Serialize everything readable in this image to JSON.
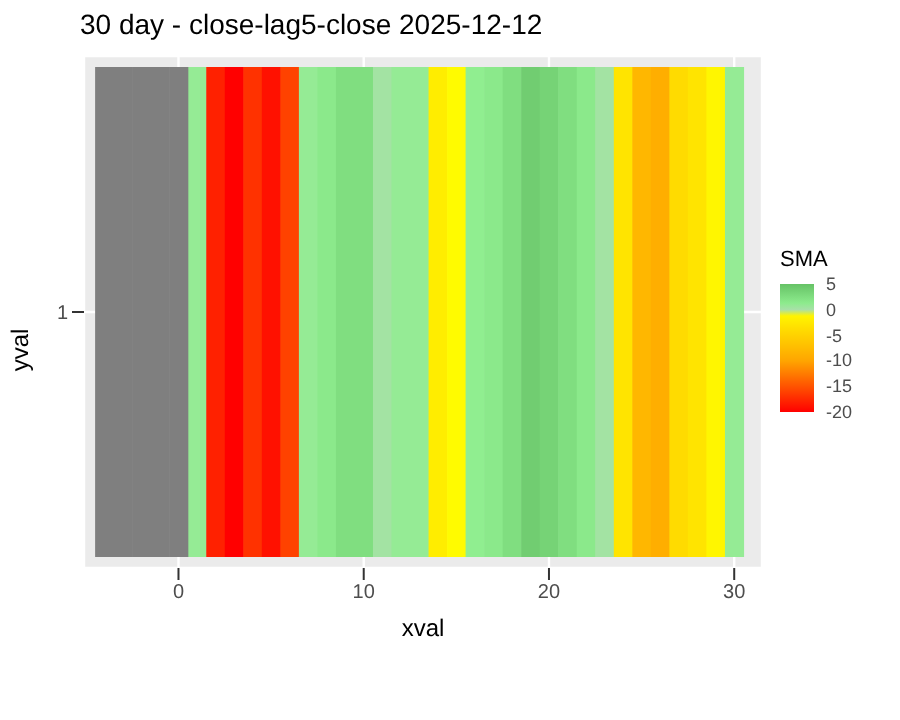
{
  "chart_data": {
    "type": "heatmap",
    "title": "30 day - close-lag5-close  2025-12-12",
    "xlabel": "xval",
    "ylabel": "yval",
    "clabel": "SMA",
    "categories": [
      null,
      null,
      null,
      null,
      "0",
      null,
      null,
      null,
      null,
      null,
      null,
      null,
      null,
      null,
      "10",
      null,
      null,
      null,
      null,
      null,
      null,
      null,
      null,
      null,
      "20",
      null,
      null,
      null,
      null,
      null,
      null,
      null,
      null,
      null,
      "30"
    ],
    "y_categories": [
      "1"
    ],
    "cells": [
      [
        null,
        null,
        null,
        null,
        null,
        0.8,
        -18,
        -20,
        -17,
        -19,
        -16,
        0.8,
        1.5,
        2.5,
        2.5,
        0.2,
        0.8,
        0.8,
        -2,
        -0.5,
        1,
        1.5,
        2.5,
        4,
        3.5,
        2.5,
        1.5,
        0.2,
        -3,
        -8,
        -9,
        -4,
        -3,
        -1,
        0.8
      ]
    ],
    "clim": [
      -20,
      5
    ],
    "cticks": [
      -20,
      -15,
      -10,
      -5,
      0,
      5
    ],
    "grid": true
  }
}
